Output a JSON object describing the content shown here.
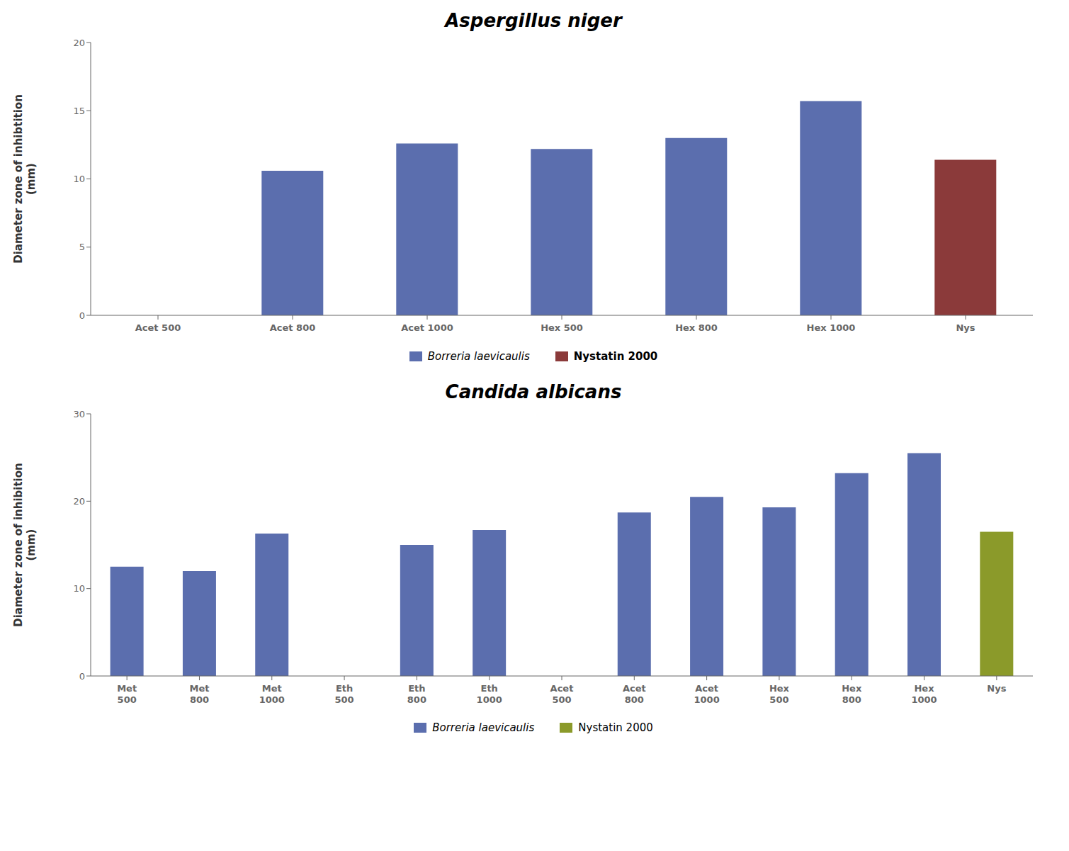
{
  "chart_data": [
    {
      "type": "bar",
      "title": "Aspergillus niger",
      "categories": [
        "Acet 500",
        "Acet 800",
        "Acet 1000",
        "Hex 500",
        "Hex 800",
        "Hex 1000",
        "Nys"
      ],
      "series": [
        {
          "name": "Borreria laevicaulis",
          "color": "#5B6EAE",
          "values": [
            0,
            10.6,
            12.6,
            12.2,
            13.0,
            15.7,
            null
          ]
        },
        {
          "name": "Nystatin 2000",
          "color": "#8B3A3A",
          "values": [
            null,
            null,
            null,
            null,
            null,
            null,
            11.4
          ]
        }
      ],
      "stacked": true,
      "ylabel": "Diameter zone of inhibtition\n(mm)",
      "ylim": [
        0,
        20
      ],
      "yticks": [
        0,
        5,
        10,
        15,
        20
      ],
      "legend": "bottom"
    },
    {
      "type": "bar",
      "title": "Candida albicans",
      "categories": [
        "Met\n500",
        "Met\n800",
        "Met\n1000",
        "Eth\n500",
        "Eth\n800",
        "Eth\n1000",
        "Acet\n500",
        "Acet\n800",
        "Acet\n1000",
        "Hex\n500",
        "Hex\n800",
        "Hex\n1000",
        "Nys"
      ],
      "series": [
        {
          "name": "Borreria laevicaulis",
          "color": "#5B6EAE",
          "values": [
            12.5,
            12.0,
            16.3,
            0,
            15.0,
            16.7,
            0,
            18.7,
            20.5,
            19.3,
            23.2,
            25.5,
            null
          ]
        },
        {
          "name": "Nystatin 2000",
          "color": "#8B9A2A",
          "values": [
            null,
            null,
            null,
            null,
            null,
            null,
            null,
            null,
            null,
            null,
            null,
            null,
            16.5
          ]
        }
      ],
      "stacked": true,
      "ylabel": "Diameter zone of inhibition\n(mm)",
      "ylim": [
        0,
        30
      ],
      "yticks": [
        0,
        10,
        20,
        30
      ],
      "legend": "bottom"
    }
  ]
}
